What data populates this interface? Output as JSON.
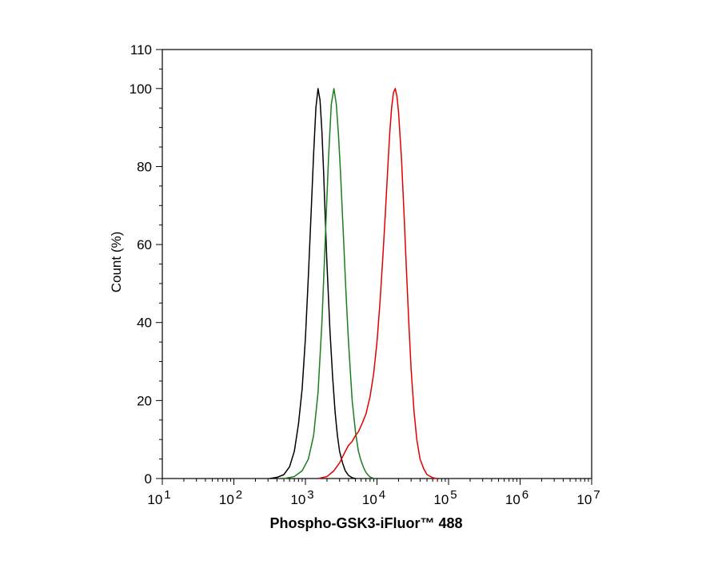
{
  "chart_data": {
    "type": "line",
    "title": "",
    "xlabel": "Phospho-GSK3-iFluor™ 488",
    "ylabel": "Count  (%)",
    "xscale": "log",
    "xlim": [
      10,
      10000000
    ],
    "ylim": [
      0,
      110
    ],
    "grid": false,
    "legend": "none",
    "x_ticks": [
      {
        "base": "10",
        "exp": "1",
        "value": 10
      },
      {
        "base": "10",
        "exp": "2",
        "value": 100
      },
      {
        "base": "10",
        "exp": "3",
        "value": 1000
      },
      {
        "base": "10",
        "exp": "4",
        "value": 10000
      },
      {
        "base": "10",
        "exp": "5",
        "value": 100000
      },
      {
        "base": "10",
        "exp": "6",
        "value": 1000000
      },
      {
        "base": "10",
        "exp": "7",
        "value": 10000000
      }
    ],
    "y_ticks": [
      {
        "label": "0",
        "value": 0
      },
      {
        "label": "20",
        "value": 20
      },
      {
        "label": "40",
        "value": 40
      },
      {
        "label": "60",
        "value": 60
      },
      {
        "label": "80",
        "value": 80
      },
      {
        "label": "100",
        "value": 100
      },
      {
        "label": "110",
        "value": 110
      }
    ],
    "series": [
      {
        "color": "#000000",
        "x": [
          316,
          400,
          500,
          600,
          700,
          800,
          900,
          1000,
          1100,
          1200,
          1300,
          1400,
          1500,
          1600,
          1700,
          1800,
          1900,
          2000,
          2200,
          2400,
          2600,
          2800,
          3000,
          3300,
          3600,
          4000,
          4500,
          5000
        ],
        "y": [
          0,
          0.3,
          1,
          3,
          7,
          14,
          23,
          36,
          52,
          68,
          83,
          95,
          100,
          97,
          89,
          78,
          66,
          55,
          38,
          26,
          17,
          11,
          7,
          4,
          2,
          0.8,
          0.2,
          0
        ]
      },
      {
        "color": "#1a7f1a",
        "x": [
          500,
          700,
          900,
          1100,
          1300,
          1500,
          1700,
          1900,
          2100,
          2300,
          2500,
          2700,
          2900,
          3100,
          3400,
          3700,
          4000,
          4500,
          5000,
          5500,
          6000,
          6500,
          7000,
          7500,
          8000,
          9000
        ],
        "y": [
          0,
          0.5,
          2,
          5,
          11,
          22,
          40,
          62,
          82,
          96,
          100,
          96,
          88,
          78,
          62,
          47,
          35,
          20,
          12,
          7,
          4.5,
          2.8,
          1.6,
          0.9,
          0.4,
          0
        ]
      },
      {
        "color": "#e00000",
        "x": [
          1500,
          2000,
          2500,
          3000,
          3500,
          4000,
          4500,
          5000,
          5500,
          6000,
          7000,
          8000,
          9000,
          10000,
          11000,
          12000,
          13000,
          14000,
          15000,
          16000,
          17000,
          18000,
          19000,
          20000,
          22000,
          24000,
          26000,
          28000,
          30000,
          33000,
          36000,
          40000,
          45000,
          50000,
          60000,
          70000
        ],
        "y": [
          0,
          0.5,
          2,
          4,
          6.5,
          8.5,
          9.5,
          11,
          12,
          13.5,
          16.5,
          21,
          27,
          35,
          45,
          56,
          67,
          78,
          88,
          95,
          99,
          100,
          98,
          94,
          82,
          67,
          52,
          39,
          28,
          17,
          10,
          5,
          2.5,
          1,
          0.2,
          0
        ]
      }
    ]
  }
}
